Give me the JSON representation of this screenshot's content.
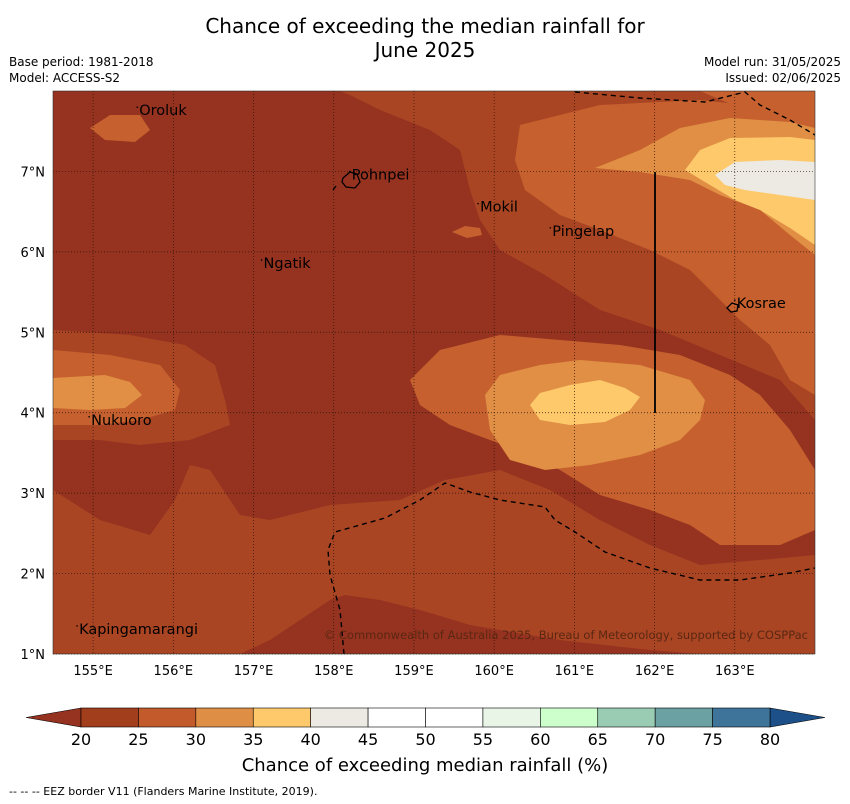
{
  "title_line1": "Chance of exceeding the median rainfall for",
  "title_line2": "June 2025",
  "base_period": "Base period: 1981-2018",
  "model": "Model: ACCESS-S2",
  "model_run": "Model run: 31/05/2025",
  "issued": "Issued: 02/06/2025",
  "copyright": "© Commonwealth of Australia 2025, Bureau of Meteorology, supported by COSPPac",
  "colorbar_title": "Chance of exceeding median rainfall (%)",
  "footer": "--  --  -- EEZ border V11 (Flanders Marine Institute, 2019).",
  "map": {
    "lon_range": [
      154.5,
      164.0
    ],
    "lat_range": [
      1.0,
      8.0
    ],
    "lon_ticks": [
      "155°E",
      "156°E",
      "157°E",
      "158°E",
      "159°E",
      "160°E",
      "161°E",
      "162°E",
      "163°E"
    ],
    "lat_ticks": [
      "1°N",
      "2°N",
      "3°N",
      "4°N",
      "5°N",
      "6°N",
      "7°N"
    ],
    "grid": true,
    "places": [
      {
        "name": "Oroluk",
        "lon": 155.55,
        "lat": 7.7
      },
      {
        "name": "Pohnpei",
        "lon": 158.2,
        "lat": 6.9
      },
      {
        "name": "Mokil",
        "lon": 159.8,
        "lat": 6.5
      },
      {
        "name": "Pingelap",
        "lon": 160.7,
        "lat": 6.2
      },
      {
        "name": "Ngatik",
        "lon": 157.1,
        "lat": 5.8
      },
      {
        "name": "Kosrae",
        "lon": 163.0,
        "lat": 5.3
      },
      {
        "name": "Nukuoro",
        "lon": 154.95,
        "lat": 3.85
      },
      {
        "name": "Kapingamarangi",
        "lon": 154.8,
        "lat": 1.25
      }
    ]
  },
  "colorbar": {
    "levels": [
      "20",
      "25",
      "30",
      "35",
      "40",
      "45",
      "50",
      "55",
      "60",
      "65",
      "70",
      "75",
      "80"
    ],
    "colors": [
      "#a23e1b",
      "#c25a2b",
      "#df8f45",
      "#fdc96b",
      "#edeae4",
      "#ffffff",
      "#ffffff",
      "#e9f6e7",
      "#ccffcc",
      "#99ccb2",
      "#6ba1a3",
      "#3e7499"
    ],
    "under_color": "#963220",
    "over_color": "#1d5089"
  },
  "palette": {
    "c15": "#963220",
    "c20": "#a94523",
    "c25": "#c6612f",
    "c30": "#e08f45",
    "c35": "#fdc96b",
    "c40": "#edeae4"
  }
}
